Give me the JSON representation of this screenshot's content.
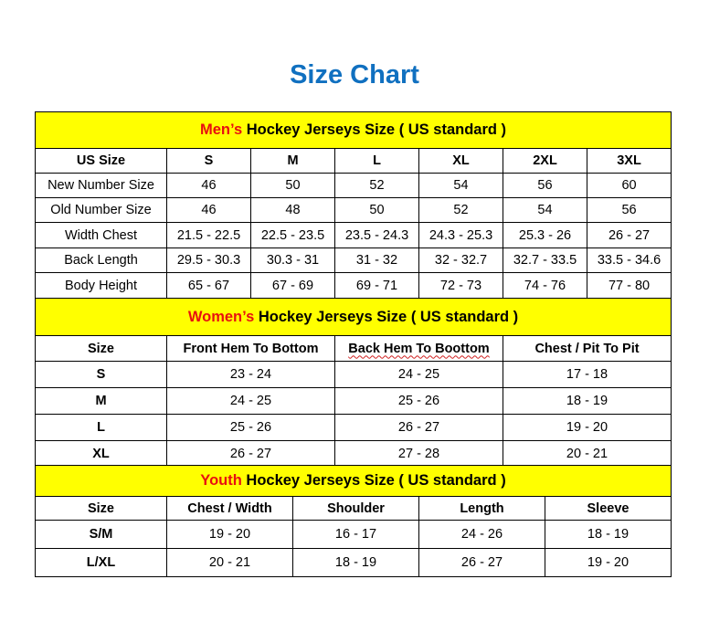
{
  "title": "Size Chart",
  "colors": {
    "title": "#1070c0",
    "section_bg": "#ffff00",
    "section_highlight": "#e81010"
  },
  "men": {
    "highlight": "Men’s",
    "heading": " Hockey Jerseys Size ( US standard )",
    "headers": [
      "US Size",
      "S",
      "M",
      "L",
      "XL",
      "2XL",
      "3XL"
    ],
    "rows": [
      [
        "New Number Size",
        "46",
        "50",
        "52",
        "54",
        "56",
        "60"
      ],
      [
        "Old Number Size",
        "46",
        "48",
        "50",
        "52",
        "54",
        "56"
      ],
      [
        "Width Chest",
        "21.5 - 22.5",
        "22.5 - 23.5",
        "23.5 - 24.3",
        "24.3 - 25.3",
        "25.3 - 26",
        "26 - 27"
      ],
      [
        "Back Length",
        "29.5 - 30.3",
        "30.3 - 31",
        "31 - 32",
        "32 - 32.7",
        "32.7 - 33.5",
        "33.5 - 34.6"
      ],
      [
        "Body Height",
        "65 - 67",
        "67 - 69",
        "69 - 71",
        "72 - 73",
        "74 - 76",
        "77 - 80"
      ]
    ]
  },
  "women": {
    "highlight": "Women’s",
    "heading": " Hockey Jerseys Size ( US standard )",
    "headers": [
      "Size",
      "Front Hem To Bottom",
      "Back Hem To Boottom",
      "Chest / Pit To Pit"
    ],
    "rows": [
      [
        "S",
        "23 - 24",
        "24 - 25",
        "17 - 18"
      ],
      [
        "M",
        "24 - 25",
        "25 - 26",
        "18 - 19"
      ],
      [
        "L",
        "25 - 26",
        "26 - 27",
        "19 - 20"
      ],
      [
        "XL",
        "26 - 27",
        "27 - 28",
        "20 - 21"
      ]
    ]
  },
  "youth": {
    "highlight": "Youth",
    "heading": " Hockey Jerseys Size ( US standard )",
    "headers": [
      "Size",
      "Chest / Width",
      "Shoulder",
      "Length",
      "Sleeve"
    ],
    "rows": [
      [
        "S/M",
        "19 - 20",
        "16 - 17",
        "24 - 26",
        "18 - 19"
      ],
      [
        "L/XL",
        "20 - 21",
        "18 - 19",
        "26 - 27",
        "19 - 20"
      ]
    ]
  }
}
